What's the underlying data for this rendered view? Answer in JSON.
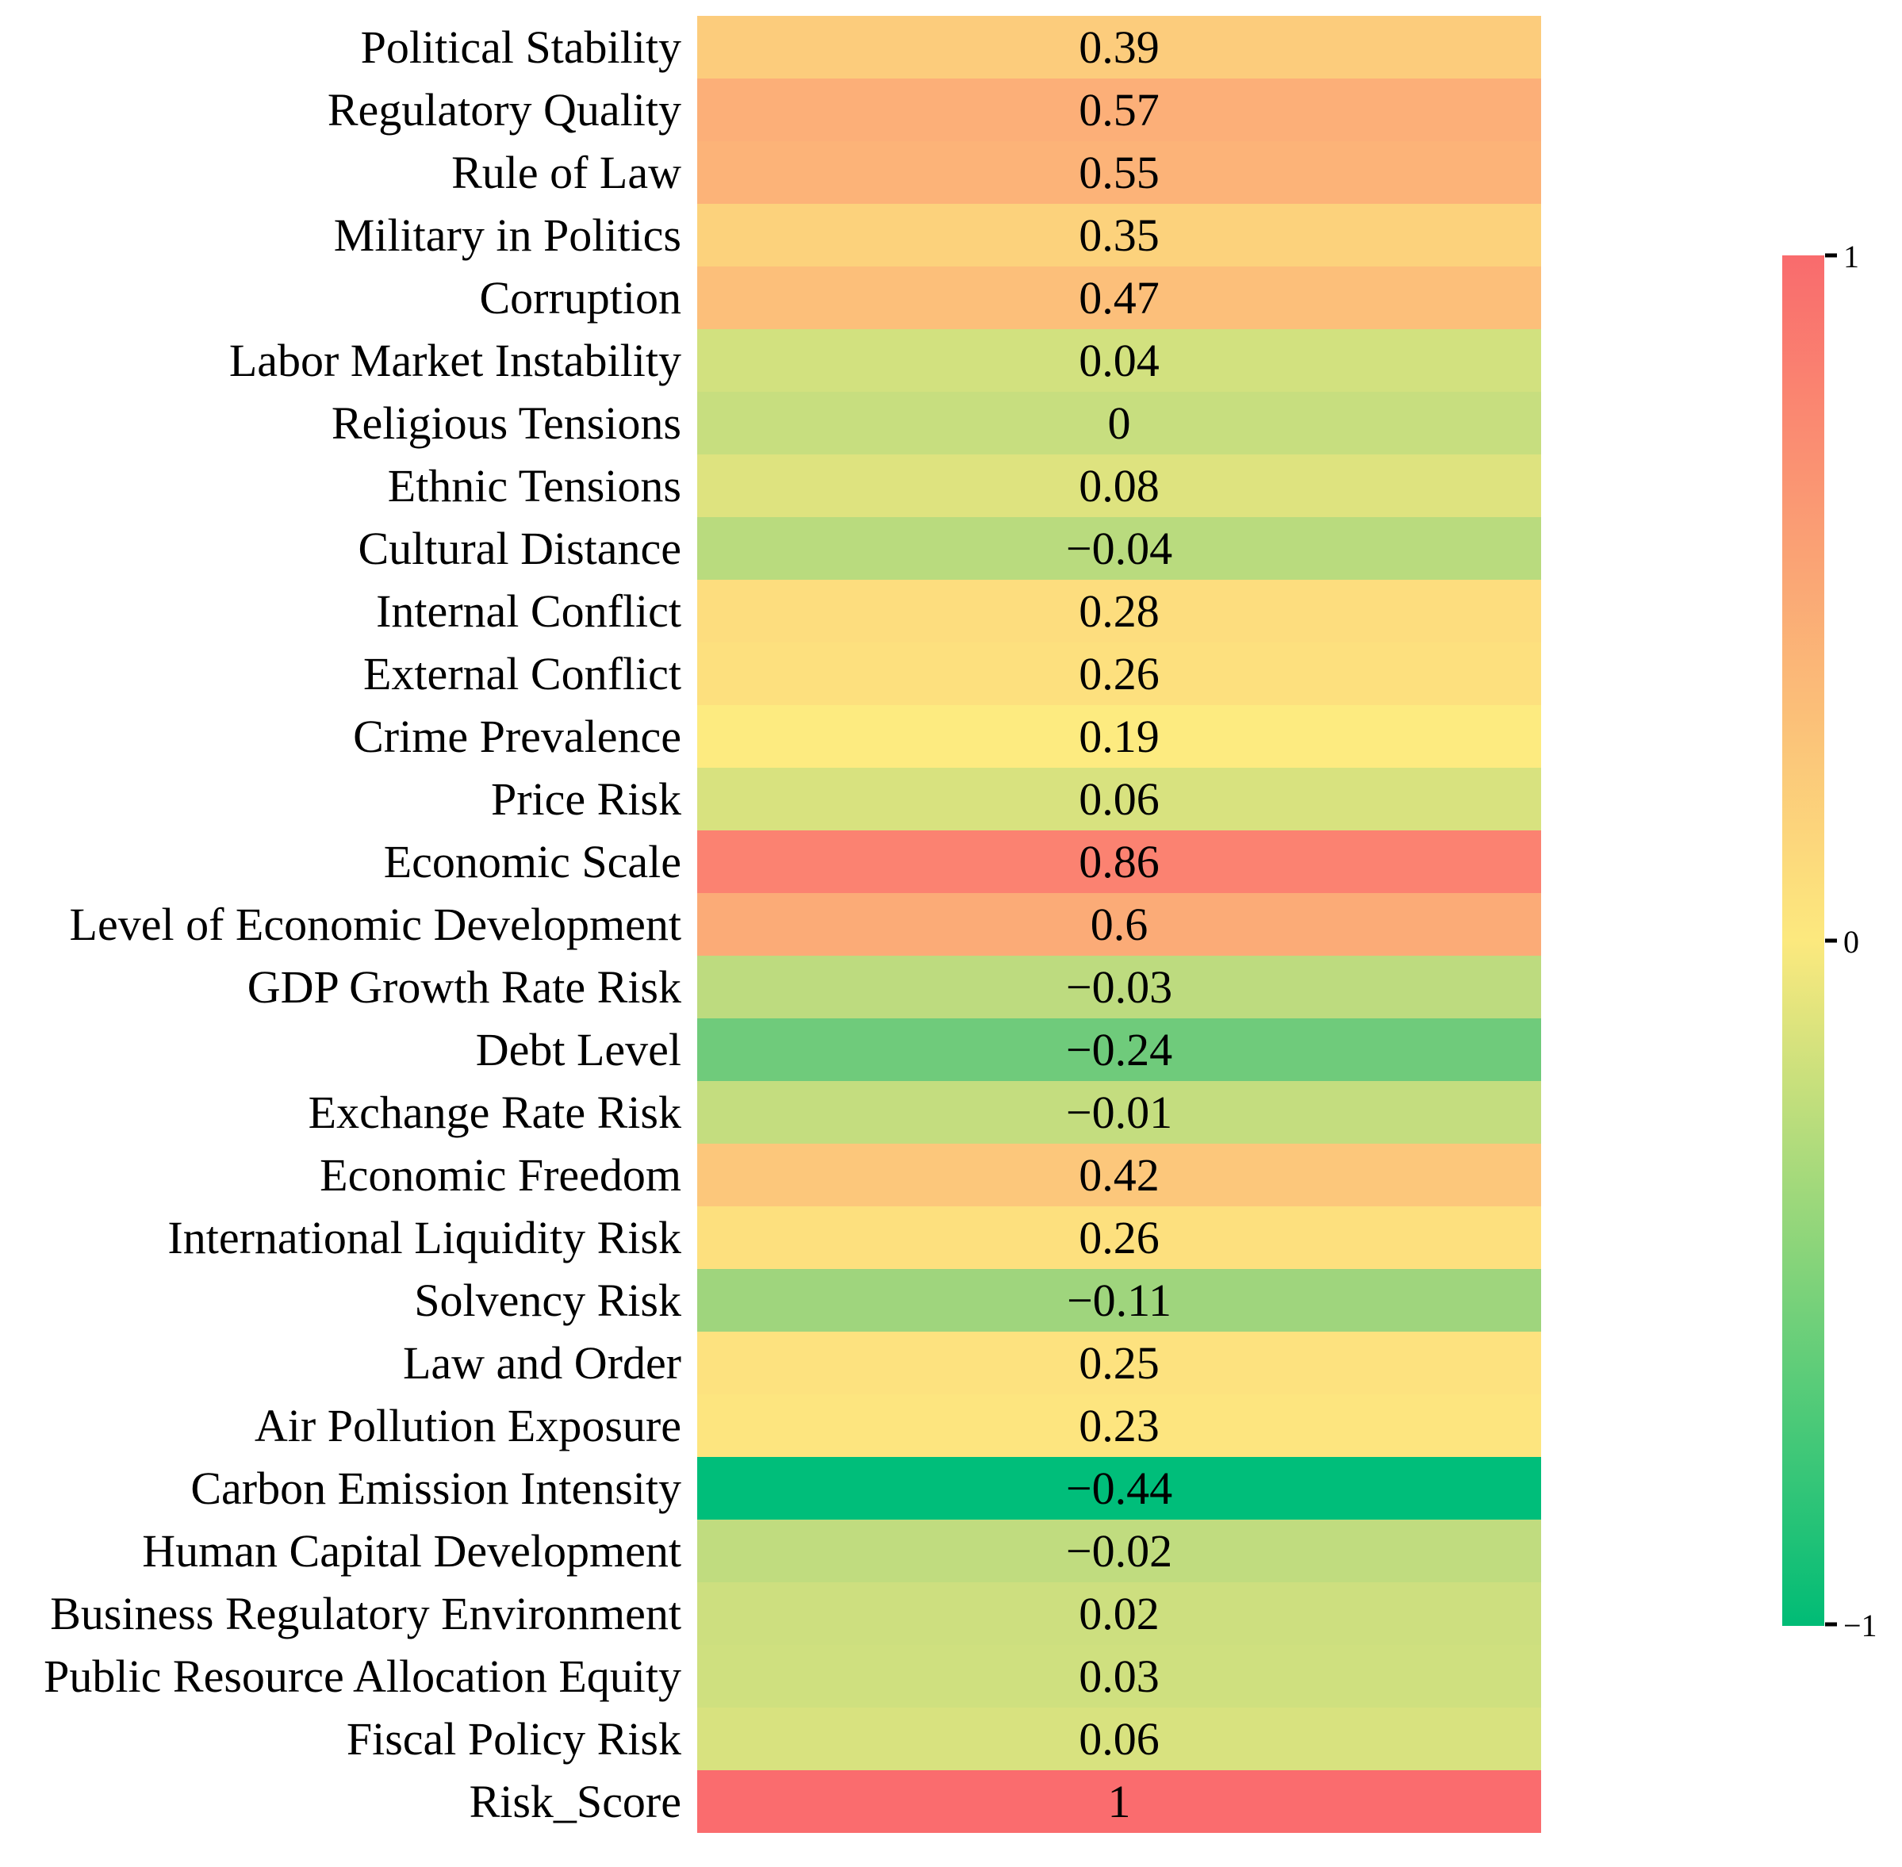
{
  "chart_data": {
    "type": "heatmap",
    "title": "",
    "description": "Single-column correlation heatmap of risk factors versus Risk_Score",
    "grid": false,
    "legend_position": "right-colorbar",
    "value_range": [
      -1,
      1
    ],
    "rows": [
      {
        "label": "Political Stability",
        "value": 0.39,
        "display": "0.39"
      },
      {
        "label": "Regulatory Quality",
        "value": 0.57,
        "display": "0.57"
      },
      {
        "label": "Rule of Law",
        "value": 0.55,
        "display": "0.55"
      },
      {
        "label": "Military in Politics",
        "value": 0.35,
        "display": "0.35"
      },
      {
        "label": "Corruption",
        "value": 0.47,
        "display": "0.47"
      },
      {
        "label": "Labor Market Instability",
        "value": 0.04,
        "display": "0.04"
      },
      {
        "label": "Religious Tensions",
        "value": 0,
        "display": "0"
      },
      {
        "label": "Ethnic Tensions",
        "value": 0.08,
        "display": "0.08"
      },
      {
        "label": "Cultural Distance",
        "value": -0.04,
        "display": "−0.04"
      },
      {
        "label": "Internal Conflict",
        "value": 0.28,
        "display": "0.28"
      },
      {
        "label": "External Conflict",
        "value": 0.26,
        "display": "0.26"
      },
      {
        "label": "Crime Prevalence",
        "value": 0.19,
        "display": "0.19"
      },
      {
        "label": "Price Risk",
        "value": 0.06,
        "display": "0.06"
      },
      {
        "label": "Economic Scale",
        "value": 0.86,
        "display": "0.86"
      },
      {
        "label": "Level of Economic Development",
        "value": 0.6,
        "display": "0.6"
      },
      {
        "label": "GDP Growth Rate Risk",
        "value": -0.03,
        "display": "−0.03"
      },
      {
        "label": "Debt Level",
        "value": -0.24,
        "display": "−0.24"
      },
      {
        "label": "Exchange Rate Risk",
        "value": -0.01,
        "display": "−0.01"
      },
      {
        "label": "Economic Freedom",
        "value": 0.42,
        "display": "0.42"
      },
      {
        "label": "International Liquidity Risk",
        "value": 0.26,
        "display": "0.26"
      },
      {
        "label": "Solvency Risk",
        "value": -0.11,
        "display": "−0.11"
      },
      {
        "label": "Law and Order",
        "value": 0.25,
        "display": "0.25"
      },
      {
        "label": "Air Pollution Exposure",
        "value": 0.23,
        "display": "0.23"
      },
      {
        "label": "Carbon Emission Intensity",
        "value": -0.44,
        "display": "−0.44"
      },
      {
        "label": "Human Capital Development",
        "value": -0.02,
        "display": "−0.02"
      },
      {
        "label": "Business Regulatory Environment",
        "value": 0.02,
        "display": "0.02"
      },
      {
        "label": "Public Resource Allocation Equity",
        "value": 0.03,
        "display": "0.03"
      },
      {
        "label": "Fiscal Policy Risk",
        "value": 0.06,
        "display": "0.06"
      },
      {
        "label": "Risk_Score",
        "value": 1,
        "display": "1"
      }
    ],
    "cell_color_scale_stops": [
      {
        "v": -0.44,
        "c": "#00BE7A"
      },
      {
        "v": -0.24,
        "c": "#6FCB7B"
      },
      {
        "v": -0.01,
        "c": "#C4DD7F"
      },
      {
        "v": 0.19,
        "c": "#FDEB80"
      },
      {
        "v": 1,
        "c": "#FA6C6E"
      }
    ],
    "colorbar": {
      "top_color": "#F96B6D",
      "mid_color": "#FCE97E",
      "bottom_color": "#00BC76",
      "tick_labels": [
        "1",
        "0",
        "−1"
      ]
    }
  }
}
